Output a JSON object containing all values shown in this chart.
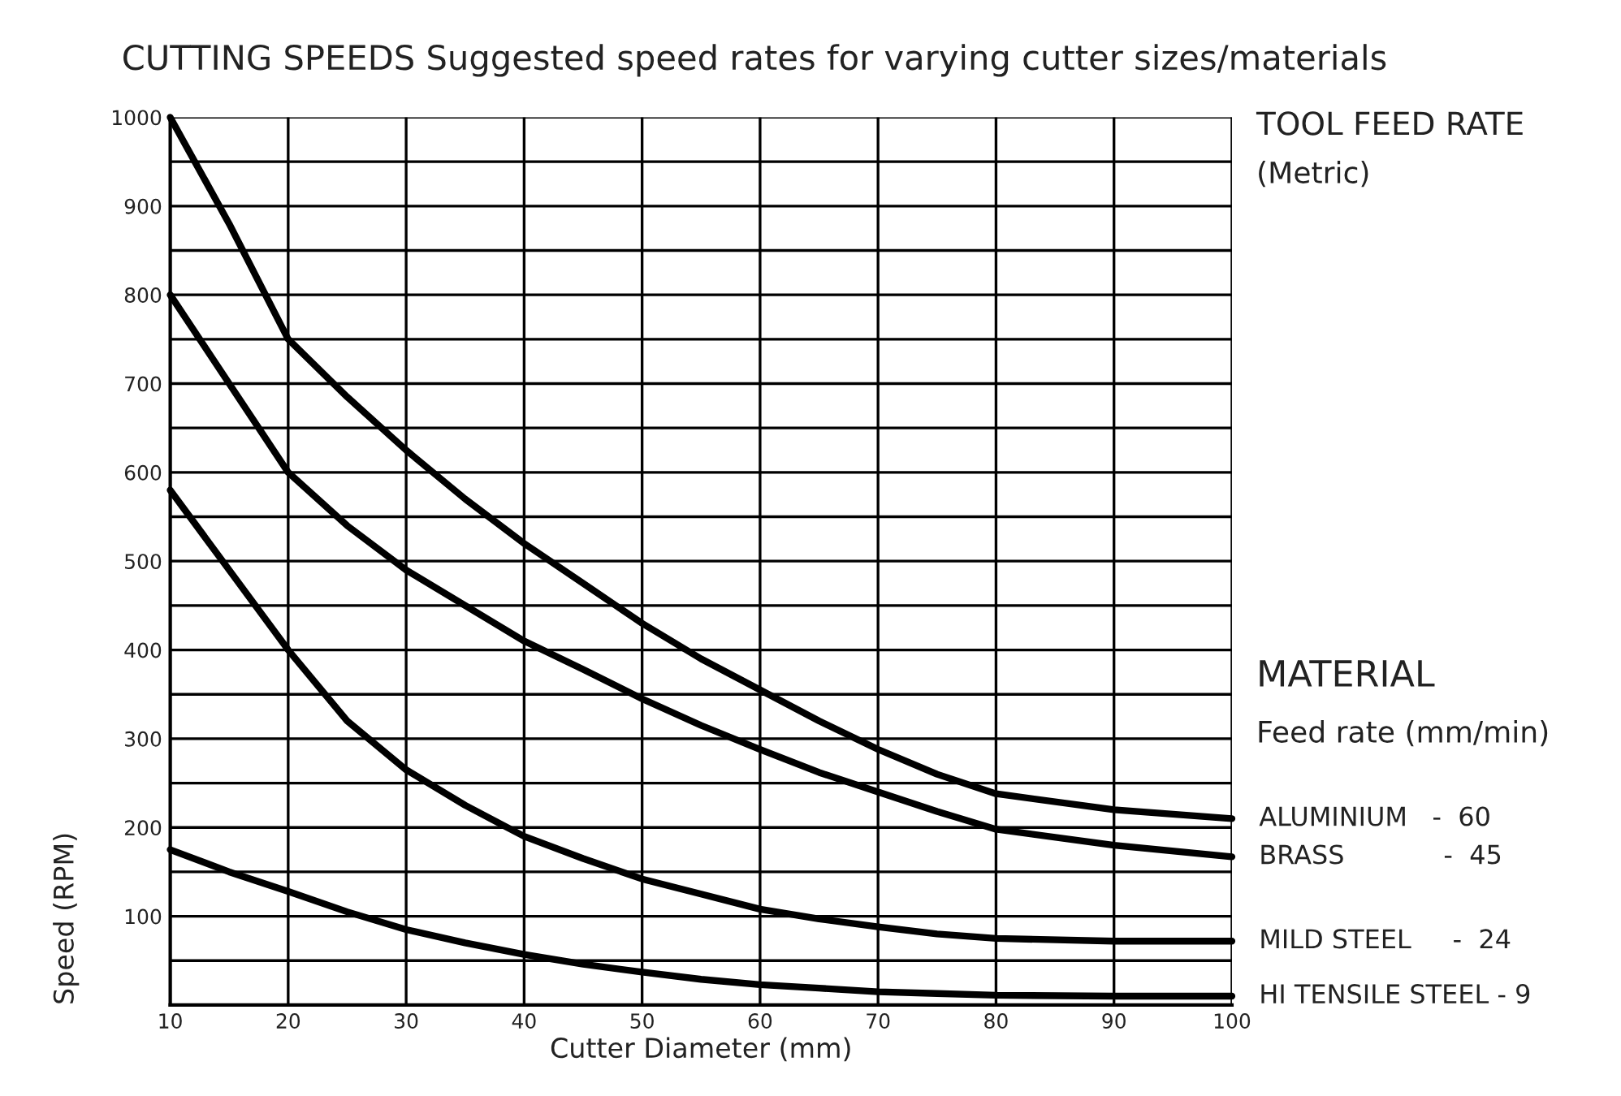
{
  "chart_data": {
    "type": "line",
    "title": "CUTTING SPEEDS",
    "subtitle": "Suggested speed rates for varying cutter sizes/materials",
    "xlabel": "Cutter Diameter (mm)",
    "ylabel": "Speed (RPM)",
    "annotations": [
      "TOOL FEED RATE",
      "(Metric)",
      "MATERIAL",
      "Feed rate (mm/min)"
    ],
    "x": [
      10,
      15,
      20,
      25,
      30,
      35,
      40,
      45,
      50,
      55,
      60,
      65,
      70,
      75,
      80,
      90,
      100
    ],
    "series": [
      {
        "name": "ALUMINIUM   -  60",
        "color": "#000000",
        "values": [
          1000,
          880,
          750,
          685,
          625,
          570,
          520,
          475,
          430,
          390,
          355,
          320,
          288,
          260,
          238,
          220,
          210
        ]
      },
      {
        "name": "BRASS            -  45",
        "color": "#000000",
        "values": [
          800,
          700,
          600,
          540,
          490,
          450,
          410,
          378,
          345,
          315,
          288,
          262,
          240,
          218,
          198,
          180,
          167
        ]
      },
      {
        "name": "MILD STEEL     -  24",
        "color": "#000000",
        "values": [
          580,
          490,
          400,
          320,
          265,
          225,
          190,
          165,
          142,
          125,
          108,
          97,
          88,
          80,
          75,
          72,
          72
        ]
      },
      {
        "name": "HI TENSILE STEEL - 9",
        "color": "#000000",
        "values": [
          175,
          150,
          128,
          105,
          85,
          70,
          57,
          46,
          37,
          29,
          23,
          19,
          15,
          13,
          11,
          10,
          10
        ]
      }
    ],
    "xlim": [
      10,
      100
    ],
    "ylim": [
      0,
      1000
    ],
    "xticks": [
      10,
      20,
      30,
      40,
      50,
      60,
      70,
      80,
      90,
      100
    ],
    "yticks": [
      {
        "value": 50,
        "label": null
      },
      100,
      {
        "value": 150,
        "label": null
      },
      200,
      {
        "value": 250,
        "label": null
      },
      300,
      {
        "value": 350,
        "label": null
      },
      400,
      {
        "value": 450,
        "label": null
      },
      500,
      {
        "value": 550,
        "label": null
      },
      600,
      {
        "value": 650,
        "label": null
      },
      700,
      {
        "value": 750,
        "label": null
      },
      800,
      {
        "value": 850,
        "label": null
      },
      900,
      {
        "value": 950,
        "label": null
      },
      1000
    ],
    "grid": true,
    "legend": false,
    "marker": "none",
    "line_style": "solid"
  }
}
